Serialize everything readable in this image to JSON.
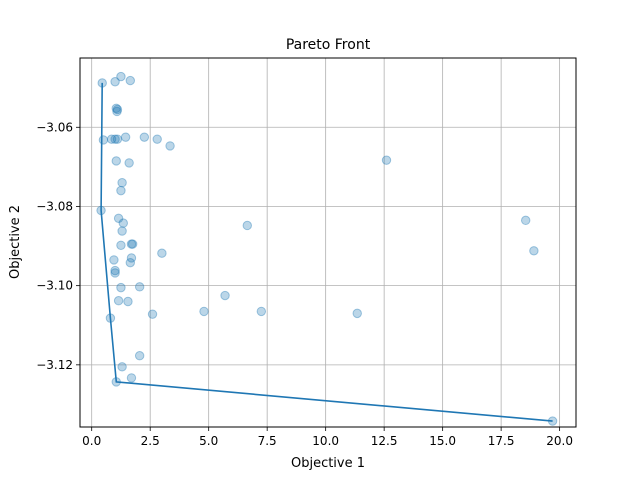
{
  "chart_data": {
    "type": "scatter",
    "title": "Pareto Front",
    "xlabel": "Objective 1",
    "ylabel": "Objective 2",
    "xlim": [
      -0.5,
      20.7
    ],
    "ylim": [
      -3.1357,
      -3.0425
    ],
    "xticks": [
      0.0,
      2.5,
      5.0,
      7.5,
      10.0,
      12.5,
      15.0,
      17.5,
      20.0
    ],
    "xtick_labels": [
      "0.0",
      "2.5",
      "5.0",
      "7.5",
      "10.0",
      "12.5",
      "15.0",
      "17.5",
      "20.0"
    ],
    "yticks": [
      -3.12,
      -3.1,
      -3.08,
      -3.06
    ],
    "ytick_labels": [
      "−3.12",
      "−3.10",
      "−3.08",
      "−3.06"
    ],
    "grid": true,
    "colors": {
      "points": "#1f77b4",
      "front": "#1f77b4",
      "grid": "#b0b0b0"
    },
    "points": [
      [
        0.45,
        -3.0488
      ],
      [
        1.0,
        -3.0485
      ],
      [
        1.25,
        -3.0472
      ],
      [
        1.65,
        -3.0482
      ],
      [
        1.05,
        -3.0552
      ],
      [
        1.1,
        -3.0555
      ],
      [
        1.08,
        -3.056
      ],
      [
        0.5,
        -3.0632
      ],
      [
        0.85,
        -3.063
      ],
      [
        1.0,
        -3.063
      ],
      [
        1.1,
        -3.063
      ],
      [
        1.45,
        -3.0625
      ],
      [
        2.25,
        -3.0625
      ],
      [
        2.8,
        -3.063
      ],
      [
        3.35,
        -3.0647
      ],
      [
        1.05,
        -3.0685
      ],
      [
        1.6,
        -3.069
      ],
      [
        1.3,
        -3.074
      ],
      [
        1.25,
        -3.076
      ],
      [
        12.6,
        -3.0683
      ],
      [
        0.4,
        -3.081
      ],
      [
        1.15,
        -3.083
      ],
      [
        1.35,
        -3.0842
      ],
      [
        1.3,
        -3.0862
      ],
      [
        6.65,
        -3.0848
      ],
      [
        18.55,
        -3.0835
      ],
      [
        18.9,
        -3.0912
      ],
      [
        1.25,
        -3.0898
      ],
      [
        1.7,
        -3.0895
      ],
      [
        1.75,
        -3.0895
      ],
      [
        3.0,
        -3.0918
      ],
      [
        1.7,
        -3.093
      ],
      [
        1.65,
        -3.0942
      ],
      [
        0.95,
        -3.0935
      ],
      [
        1.0,
        -3.0962
      ],
      [
        1.0,
        -3.0968
      ],
      [
        1.25,
        -3.1005
      ],
      [
        2.05,
        -3.1003
      ],
      [
        1.15,
        -3.1038
      ],
      [
        1.55,
        -3.104
      ],
      [
        2.6,
        -3.1072
      ],
      [
        4.8,
        -3.1065
      ],
      [
        5.7,
        -3.1025
      ],
      [
        7.25,
        -3.1065
      ],
      [
        11.35,
        -3.107
      ],
      [
        0.8,
        -3.1082
      ],
      [
        2.05,
        -3.1177
      ],
      [
        1.3,
        -3.1205
      ],
      [
        1.7,
        -3.1233
      ],
      [
        1.05,
        -3.1243
      ],
      [
        19.7,
        -3.1342
      ]
    ],
    "front": [
      [
        0.45,
        -3.0488
      ],
      [
        0.4,
        -3.081
      ],
      [
        0.8,
        -3.1082
      ],
      [
        1.05,
        -3.1243
      ],
      [
        19.7,
        -3.1342
      ]
    ]
  }
}
